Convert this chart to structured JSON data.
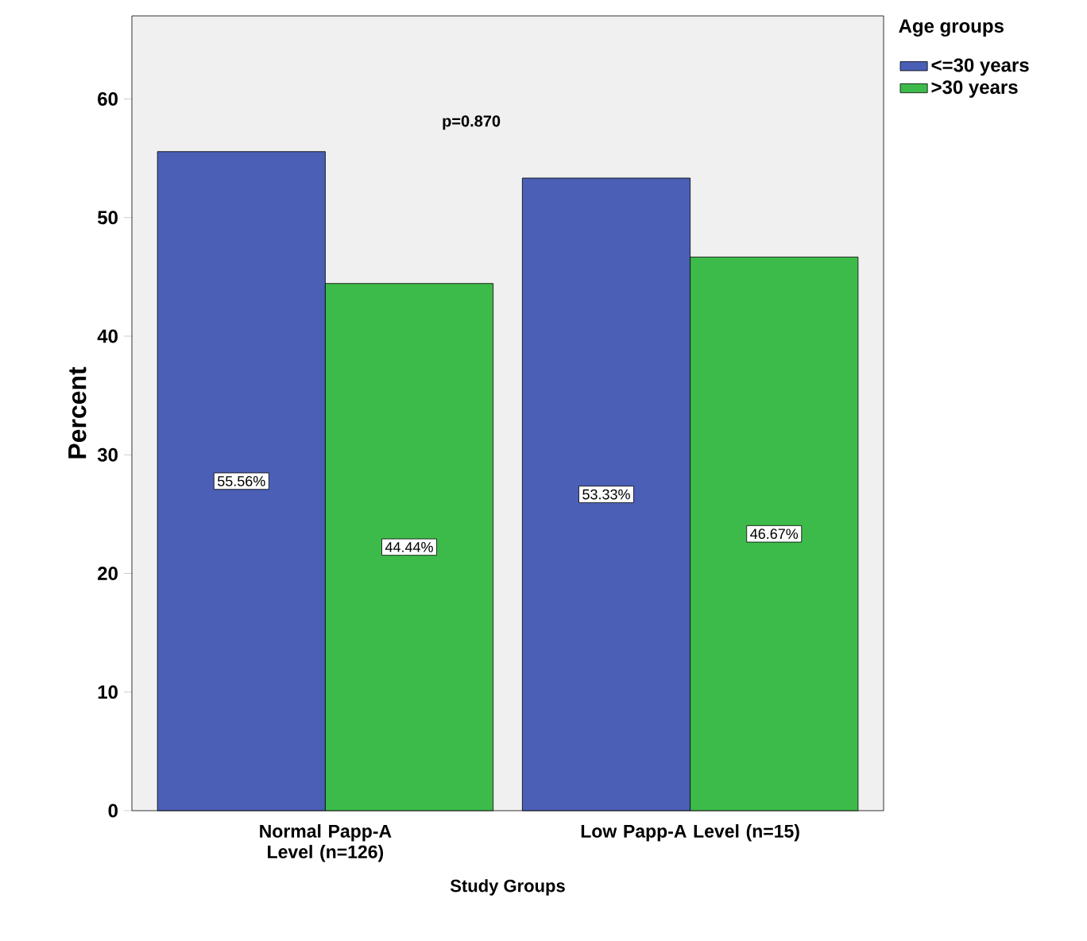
{
  "chart_data": {
    "type": "bar",
    "ylabel": "Percent",
    "xlabel": "Study Groups",
    "legend_title": "Age groups",
    "categories": [
      "Normal Papp-A Level (n=126)",
      "Low Papp-A Level (n=15)"
    ],
    "series": [
      {
        "name": "<=30 years",
        "color": "#4a5fb5",
        "values": [
          55.56,
          53.33
        ],
        "value_labels": [
          "55.56%",
          "53.33%"
        ]
      },
      {
        "name": ">30 years",
        "color": "#3dbb4a",
        "values": [
          44.44,
          46.67
        ],
        "value_labels": [
          "44.44%",
          "46.67%"
        ]
      }
    ],
    "ylim": [
      0,
      67
    ],
    "yticks": [
      0,
      10,
      20,
      30,
      40,
      50,
      60
    ],
    "annotations": [
      "p=0.870"
    ],
    "legend": "right",
    "grid": false
  }
}
